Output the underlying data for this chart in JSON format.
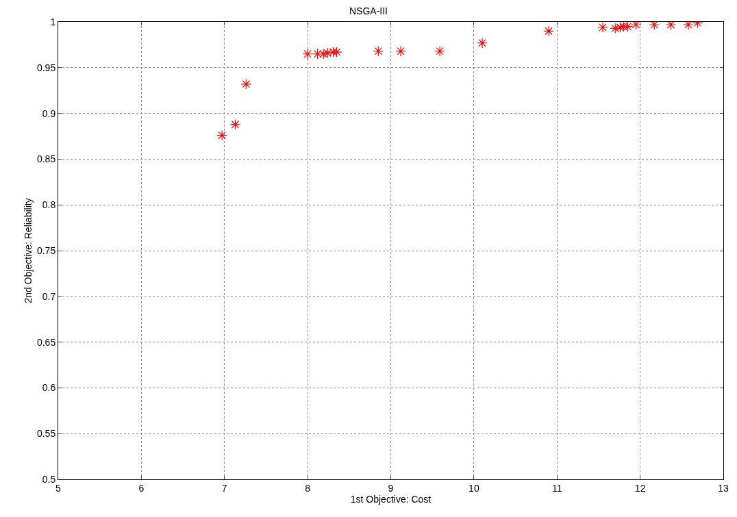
{
  "chart_data": {
    "type": "scatter",
    "title": "NSGA-III",
    "xlabel": "1st Objective: Cost",
    "ylabel": "2nd Objective: Reliability",
    "x": [
      6.97,
      7.13,
      7.26,
      8.0,
      8.12,
      8.19,
      8.24,
      8.31,
      8.35,
      8.85,
      9.12,
      9.59,
      10.1,
      10.9,
      11.55,
      11.7,
      11.76,
      11.8,
      11.85,
      11.95,
      12.17,
      12.37,
      12.58,
      12.69
    ],
    "series": [
      {
        "color": "#ff0000",
        "values": [
          0.876,
          0.888,
          0.932,
          0.965,
          0.965,
          0.965,
          0.966,
          0.967,
          0.967,
          0.968,
          0.968,
          0.968,
          0.977,
          0.99,
          0.994,
          0.993,
          0.994,
          0.995,
          0.995,
          0.997,
          0.997,
          0.997,
          0.997,
          0.999
        ]
      }
    ],
    "xlim": [
      5,
      13
    ],
    "xticks": [
      5,
      6,
      7,
      8,
      9,
      10,
      11,
      12,
      13
    ],
    "ylim": [
      0.5,
      1
    ],
    "yticks": [
      0.5,
      0.55,
      0.6,
      0.65,
      0.7,
      0.75,
      0.8,
      0.85,
      0.9,
      0.95,
      1
    ],
    "grid": true,
    "marker": "cross"
  }
}
